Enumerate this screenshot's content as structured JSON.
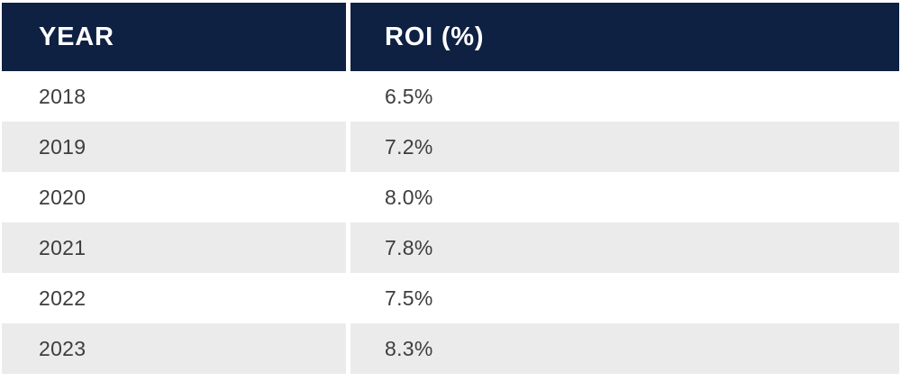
{
  "table": {
    "columns": [
      {
        "label": "YEAR"
      },
      {
        "label": "ROI (%)"
      }
    ],
    "rows": [
      {
        "year": "2018",
        "roi": "6.5%"
      },
      {
        "year": "2019",
        "roi": "7.2%"
      },
      {
        "year": "2020",
        "roi": "8.0%"
      },
      {
        "year": "2021",
        "roi": "7.8%"
      },
      {
        "year": "2022",
        "roi": "7.5%"
      },
      {
        "year": "2023",
        "roi": "8.3%"
      }
    ]
  },
  "colors": {
    "header_bg": "#0e2143",
    "header_text": "#ffffff",
    "alt_row_bg": "#ebebeb",
    "body_text": "#3d3d3d",
    "divider": "#ffffff"
  },
  "chart_data": {
    "type": "table",
    "title": "",
    "columns": [
      "YEAR",
      "ROI (%)"
    ],
    "categories": [
      "2018",
      "2019",
      "2020",
      "2021",
      "2022",
      "2023"
    ],
    "series": [
      {
        "name": "ROI (%)",
        "values": [
          6.5,
          7.2,
          8.0,
          7.8,
          7.5,
          8.3
        ]
      }
    ]
  }
}
